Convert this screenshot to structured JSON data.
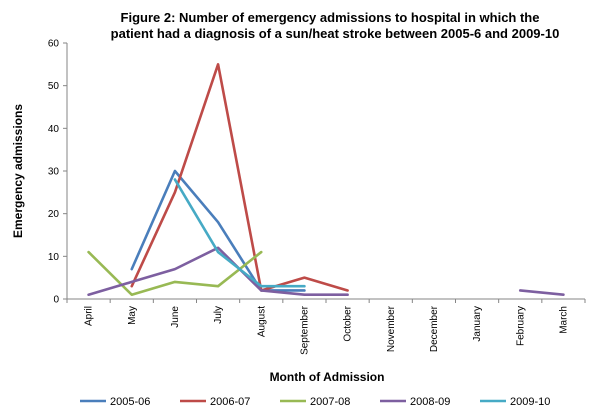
{
  "chart_data": {
    "type": "line",
    "title_lines": [
      "Figure 2: Number of emergency admissions  to hospital in which the",
      "patient had a diagnosis  of a sun/heat stroke  between 2005-6  and 2009-10"
    ],
    "xlabel": "Month of Admission",
    "ylabel": "Emergency admissions",
    "ylim": [
      0,
      60
    ],
    "yticks": [
      0,
      10,
      20,
      30,
      40,
      50,
      60
    ],
    "grid": false,
    "legend_position": "bottom",
    "categories": [
      "April",
      "May",
      "June",
      "July",
      "August",
      "September",
      "October",
      "November",
      "December",
      "January",
      "February",
      "March"
    ],
    "series": [
      {
        "name": "2005-06",
        "color": "#4a7ebb",
        "values": [
          null,
          7,
          30,
          18,
          2,
          2,
          null,
          null,
          null,
          null,
          null,
          null
        ]
      },
      {
        "name": "2006-07",
        "color": "#be4b48",
        "values": [
          null,
          3,
          25,
          55,
          2,
          5,
          2,
          null,
          null,
          null,
          null,
          null
        ]
      },
      {
        "name": "2007-08",
        "color": "#98b954",
        "values": [
          11,
          1,
          4,
          3,
          11,
          null,
          null,
          null,
          null,
          null,
          null,
          null
        ]
      },
      {
        "name": "2008-09",
        "color": "#7d5fa0",
        "values": [
          1,
          4,
          7,
          12,
          2,
          1,
          1,
          null,
          null,
          null,
          2,
          1
        ]
      },
      {
        "name": "2009-10",
        "color": "#46aac5",
        "values": [
          null,
          null,
          28,
          11,
          3,
          3,
          null,
          null,
          null,
          null,
          null,
          null
        ]
      }
    ]
  }
}
